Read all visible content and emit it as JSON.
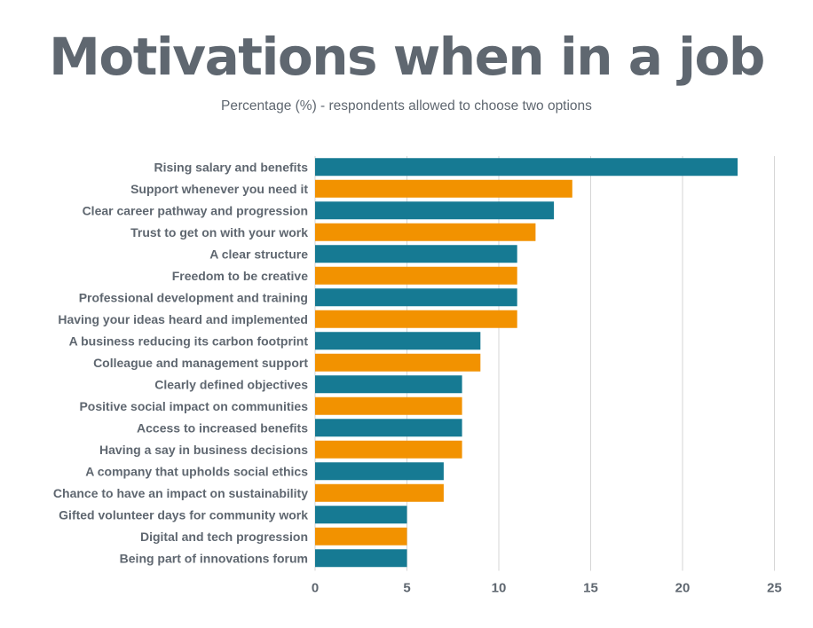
{
  "chart_data": {
    "type": "bar",
    "orientation": "horizontal",
    "title": "Motivations when in a job",
    "subtitle": "Percentage (%) - respondents allowed to choose two options",
    "xlabel": "",
    "ylabel": "",
    "xlim": [
      0,
      25
    ],
    "ticks": [
      0,
      5,
      10,
      15,
      20,
      25
    ],
    "tick_labels": [
      "0",
      "5",
      "10",
      "15",
      "20",
      "25"
    ],
    "grid": true,
    "legend": "none",
    "colors": [
      "#167a93",
      "#f29200"
    ],
    "categories": [
      "Rising salary and benefits",
      "Support whenever you need it",
      "Clear career pathway and progression",
      "Trust to get on with your work",
      "A clear structure",
      "Freedom to be creative",
      "Professional development and training",
      "Having your ideas heard and implemented",
      "A business reducing its carbon footprint",
      "Colleague and management support",
      "Clearly defined objectives",
      "Positive social impact on communities",
      "Access to increased benefits",
      "Having a say in business decisions",
      "A company that upholds social ethics",
      "Chance to have an impact on sustainability",
      "Gifted volunteer days for community work",
      "Digital and tech progression",
      "Being part of innovations forum"
    ],
    "values": [
      23,
      14,
      13,
      12,
      11,
      11,
      11,
      11,
      9,
      9,
      8,
      8,
      8,
      8,
      7,
      7,
      5,
      5,
      5
    ]
  }
}
